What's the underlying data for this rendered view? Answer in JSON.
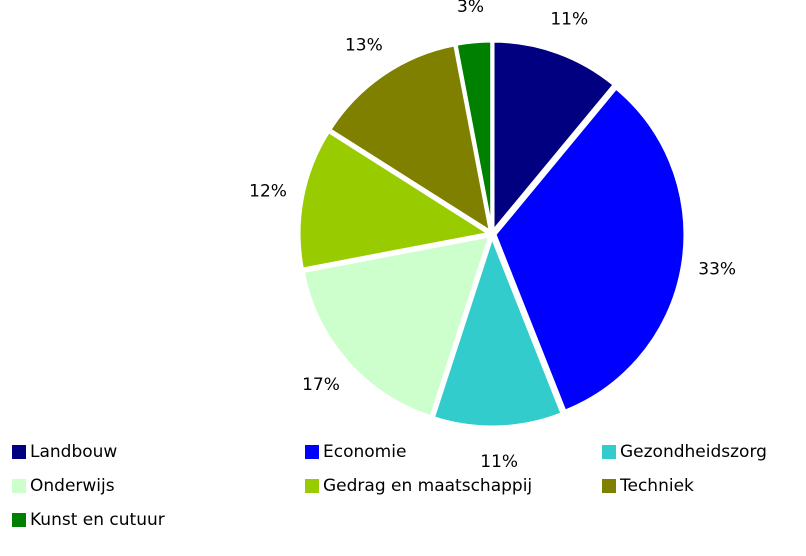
{
  "chart_data": {
    "type": "pie",
    "categories": [
      "Landbouw",
      "Economie",
      "Gezondheidszorg",
      "Onderwijs",
      "Gedrag en maatschappij",
      "Techniek",
      "Kunst en cutuur"
    ],
    "values": [
      11,
      33,
      11,
      17,
      12,
      13,
      3
    ],
    "value_labels": [
      "11%",
      "33%",
      "11%",
      "17%",
      "12%",
      "13%",
      "3%"
    ],
    "colors": [
      "#000080",
      "#0000ff",
      "#33cccc",
      "#ccffcc",
      "#99cc00",
      "#808000",
      "#008000"
    ],
    "legend": "bottom"
  }
}
